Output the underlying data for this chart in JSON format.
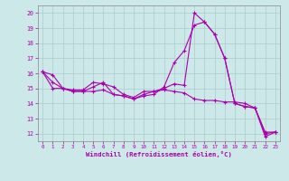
{
  "xlabel": "Windchill (Refroidissement éolien,°C)",
  "xlim": [
    -0.5,
    23.5
  ],
  "ylim": [
    11.5,
    20.5
  ],
  "yticks": [
    12,
    13,
    14,
    15,
    16,
    17,
    18,
    19,
    20
  ],
  "xticks": [
    0,
    1,
    2,
    3,
    4,
    5,
    6,
    7,
    8,
    9,
    10,
    11,
    12,
    13,
    14,
    15,
    16,
    17,
    18,
    19,
    20,
    21,
    22,
    23
  ],
  "bg_color": "#cde8e8",
  "line_color": "#aa00aa",
  "grid_color": "#aacccc",
  "series": [
    [
      16.1,
      15.9,
      15.0,
      14.9,
      14.9,
      15.4,
      15.3,
      15.1,
      14.6,
      14.4,
      14.8,
      14.8,
      14.9,
      14.8,
      14.7,
      14.3,
      14.2,
      14.2,
      14.1,
      14.1,
      14.0,
      13.7,
      12.1,
      12.1
    ],
    [
      16.1,
      15.0,
      15.0,
      14.8,
      14.8,
      15.1,
      15.4,
      14.6,
      14.5,
      14.3,
      14.6,
      14.8,
      15.0,
      15.3,
      15.2,
      20.0,
      19.4,
      18.6,
      17.0,
      14.0,
      13.8,
      13.7,
      11.8,
      12.1
    ],
    [
      16.1,
      15.4,
      15.0,
      14.8,
      14.8,
      14.8,
      14.9,
      14.6,
      14.5,
      14.3,
      14.5,
      14.6,
      15.1,
      16.7,
      17.5,
      19.2,
      19.4,
      18.6,
      17.0,
      14.0,
      13.8,
      13.7,
      12.0,
      12.1
    ]
  ]
}
